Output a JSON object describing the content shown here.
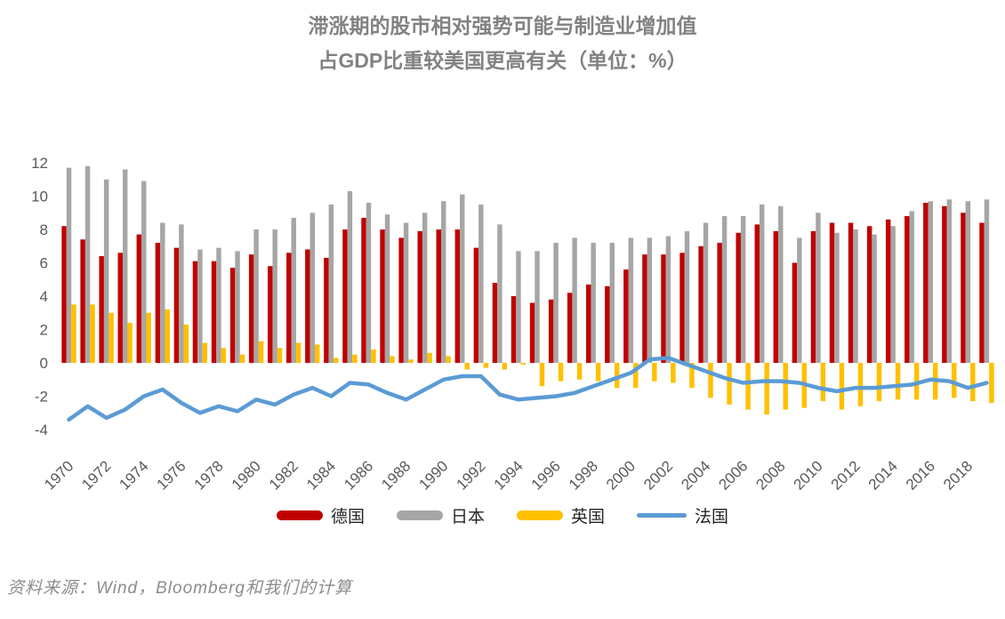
{
  "title": {
    "line1": "滞涨期的股市相对强势可能与制造业增加值",
    "line2": "占GDP比重较美国更高有关（单位：%）"
  },
  "source": "资料来源：Wind，Bloomberg和我们的计算",
  "colors": {
    "germany_red": "#C00000",
    "japan_gray": "#A6A6A6",
    "uk_yellow": "#FFC000",
    "france_blue": "#5B9BD5",
    "title_gray": "#828282",
    "axis_gray": "#595959"
  },
  "legend": [
    {
      "label": "德国",
      "swatch": "bar",
      "color": "#C00000"
    },
    {
      "label": "日本",
      "swatch": "bar",
      "color": "#A6A6A6"
    },
    {
      "label": "英国",
      "swatch": "bar",
      "color": "#FFC000"
    },
    {
      "label": "法国",
      "swatch": "line",
      "color": "#5B9BD5"
    }
  ],
  "chart_data": {
    "type": "bar",
    "x": [
      1970,
      1971,
      1972,
      1973,
      1974,
      1975,
      1976,
      1977,
      1978,
      1979,
      1980,
      1981,
      1982,
      1983,
      1984,
      1985,
      1986,
      1987,
      1988,
      1989,
      1990,
      1991,
      1992,
      1993,
      1994,
      1995,
      1996,
      1997,
      1998,
      1999,
      2000,
      2001,
      2002,
      2003,
      2004,
      2005,
      2006,
      2007,
      2008,
      2009,
      2010,
      2011,
      2012,
      2013,
      2014,
      2015,
      2016,
      2017,
      2018,
      2019
    ],
    "series": [
      {
        "name": "德国",
        "kind": "bar",
        "color": "#C00000",
        "values": [
          8.2,
          7.4,
          6.4,
          6.6,
          7.7,
          7.2,
          6.9,
          6.1,
          6.1,
          5.7,
          6.5,
          5.8,
          6.6,
          6.8,
          6.3,
          8.0,
          8.7,
          8.0,
          7.5,
          7.9,
          8.0,
          8.0,
          6.9,
          4.8,
          4.0,
          3.6,
          3.8,
          4.2,
          4.7,
          4.6,
          5.6,
          6.5,
          6.5,
          6.6,
          7.0,
          7.2,
          7.8,
          8.3,
          7.9,
          6.0,
          7.9,
          8.4,
          8.4,
          8.2,
          8.6,
          8.8,
          9.6,
          9.4,
          9.0,
          8.4
        ]
      },
      {
        "name": "日本",
        "kind": "bar",
        "color": "#A6A6A6",
        "values": [
          11.7,
          11.8,
          11.0,
          11.6,
          10.9,
          8.4,
          8.3,
          6.8,
          6.9,
          6.7,
          8.0,
          8.0,
          8.7,
          9.0,
          9.5,
          10.3,
          9.6,
          8.9,
          8.4,
          9.0,
          9.7,
          10.1,
          9.5,
          8.3,
          6.7,
          6.7,
          7.2,
          7.5,
          7.2,
          7.2,
          7.5,
          7.5,
          7.6,
          7.9,
          8.4,
          8.8,
          8.8,
          9.5,
          9.4,
          7.5,
          9.0,
          7.8,
          8.0,
          7.7,
          8.2,
          9.1,
          9.7,
          9.8,
          9.7,
          9.8
        ]
      },
      {
        "name": "英国",
        "kind": "bar",
        "color": "#FFC000",
        "values": [
          3.5,
          3.5,
          3.0,
          2.4,
          3.0,
          3.2,
          2.3,
          1.2,
          0.9,
          0.5,
          1.3,
          0.9,
          1.2,
          1.1,
          0.3,
          0.5,
          0.8,
          0.4,
          0.2,
          0.6,
          0.4,
          -0.4,
          -0.3,
          -0.4,
          -0.1,
          -1.4,
          -1.1,
          -1.0,
          -1.1,
          -1.5,
          -1.5,
          -1.1,
          -1.2,
          -1.5,
          -2.1,
          -2.5,
          -2.8,
          -3.1,
          -2.8,
          -2.7,
          -2.3,
          -2.8,
          -2.6,
          -2.3,
          -2.2,
          -2.2,
          -2.2,
          -2.1,
          -2.3,
          -2.4
        ]
      },
      {
        "name": "法国",
        "kind": "line",
        "color": "#5B9BD5",
        "values": [
          -3.4,
          -2.6,
          -3.3,
          -2.8,
          -2.0,
          -1.6,
          -2.4,
          -3.0,
          -2.6,
          -2.9,
          -2.2,
          -2.5,
          -1.9,
          -1.5,
          -2.0,
          -1.2,
          -1.3,
          -1.8,
          -2.2,
          -1.6,
          -1.0,
          -0.8,
          -0.8,
          -1.9,
          -2.2,
          -2.1,
          -2.0,
          -1.8,
          -1.4,
          -1.0,
          -0.6,
          0.2,
          0.3,
          -0.1,
          -0.5,
          -0.9,
          -1.2,
          -1.1,
          -1.1,
          -1.2,
          -1.5,
          -1.7,
          -1.5,
          -1.5,
          -1.4,
          -1.3,
          -1.0,
          -1.1,
          -1.5,
          -1.2
        ]
      }
    ],
    "ylim": [
      -4,
      12
    ],
    "yticks": [
      12,
      10,
      8,
      6,
      4,
      2,
      0,
      -2,
      -4
    ],
    "xticks": [
      1970,
      1972,
      1974,
      1976,
      1978,
      1980,
      1982,
      1984,
      1986,
      1988,
      1990,
      1992,
      1994,
      1996,
      1998,
      2000,
      2002,
      2004,
      2006,
      2008,
      2010,
      2012,
      2014,
      2016,
      2018
    ],
    "grid": false,
    "legend_position": "bottom"
  }
}
